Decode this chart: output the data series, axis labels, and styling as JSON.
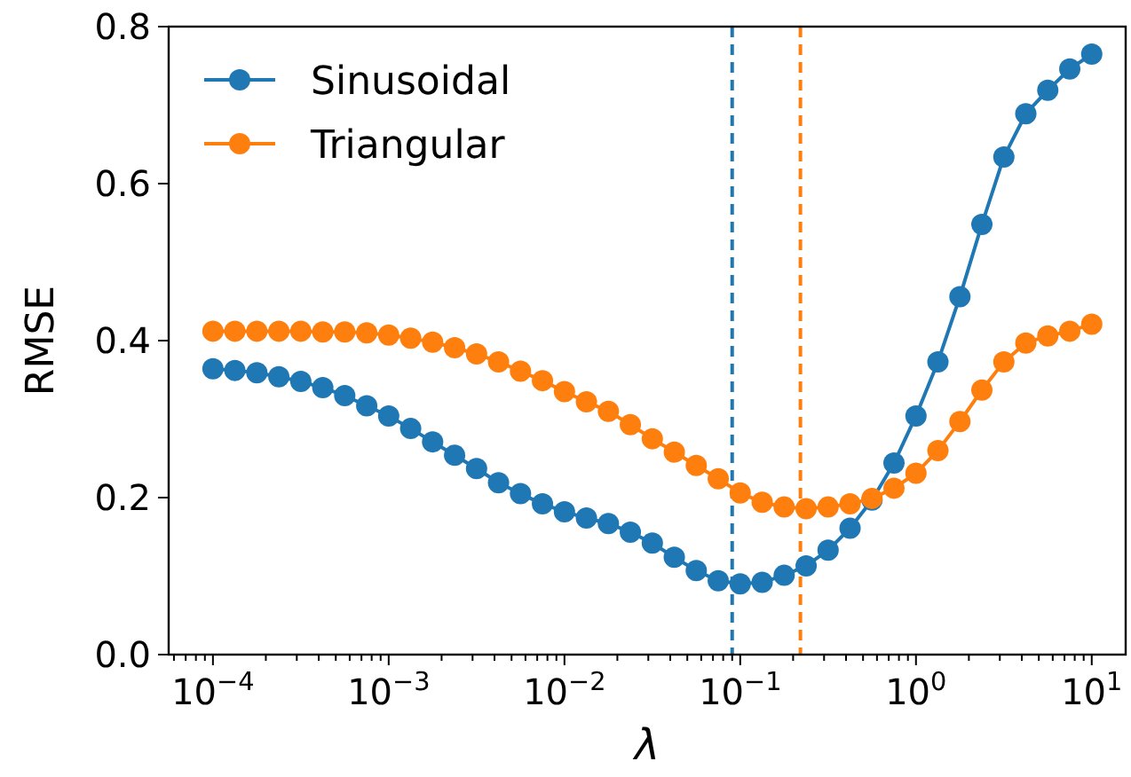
{
  "chart_data": {
    "type": "line",
    "xlabel": "λ",
    "ylabel": "RMSE",
    "log": "x",
    "marker": "circle",
    "line_style": "solid",
    "legend": "top left",
    "grid": false,
    "x": [
      0.0001,
      0.00013335,
      0.00017783,
      0.00023714,
      0.00031623,
      0.0004217,
      0.00056234,
      0.00074989,
      0.001,
      0.0013335,
      0.0017783,
      0.0023714,
      0.0031623,
      0.004217,
      0.0056234,
      0.0074989,
      0.01,
      0.013335,
      0.017783,
      0.023714,
      0.031623,
      0.04217,
      0.056234,
      0.074989,
      0.1,
      0.13335,
      0.17783,
      0.23714,
      0.31623,
      0.4217,
      0.56234,
      0.74989,
      1,
      1.3335,
      1.7783,
      2.3714,
      3.1623,
      4.217,
      5.6234,
      7.4989,
      10
    ],
    "xlim": [
      5.6e-05,
      15.6
    ],
    "xticks": [
      {
        "value": 0.0001,
        "label": "10$^{−4}$"
      },
      {
        "value": 0.001,
        "label": "10$^{−3}$"
      },
      {
        "value": 0.01,
        "label": "10$^{−2}$"
      },
      {
        "value": 0.1,
        "label": "10$^{−1}$"
      },
      {
        "value": 1,
        "label": "10$^{0}$"
      },
      {
        "value": 10,
        "label": "10$^{1}$"
      }
    ],
    "ylim": [
      0,
      0.8
    ],
    "yticks": [
      {
        "value": 0,
        "label": "0.0"
      },
      0.2,
      0.4,
      0.6,
      0.8
    ],
    "series": [
      {
        "name": "Sinusoidal",
        "color": "#1f77b4",
        "values": [
          0.364,
          0.362,
          0.359,
          0.354,
          0.348,
          0.34,
          0.33,
          0.317,
          0.304,
          0.288,
          0.271,
          0.254,
          0.237,
          0.219,
          0.205,
          0.192,
          0.182,
          0.174,
          0.167,
          0.156,
          0.142,
          0.124,
          0.107,
          0.094,
          0.09,
          0.092,
          0.101,
          0.113,
          0.133,
          0.161,
          0.197,
          0.244,
          0.304,
          0.373,
          0.456,
          0.548,
          0.634,
          0.689,
          0.719,
          0.746,
          0.765
        ]
      },
      {
        "name": "Triangular",
        "color": "#ff7f0e",
        "values": [
          0.412,
          0.412,
          0.412,
          0.412,
          0.412,
          0.411,
          0.411,
          0.41,
          0.407,
          0.403,
          0.398,
          0.391,
          0.383,
          0.373,
          0.361,
          0.349,
          0.335,
          0.322,
          0.31,
          0.293,
          0.275,
          0.258,
          0.241,
          0.224,
          0.206,
          0.194,
          0.188,
          0.186,
          0.188,
          0.192,
          0.199,
          0.212,
          0.231,
          0.26,
          0.297,
          0.337,
          0.373,
          0.397,
          0.406,
          0.412,
          0.421
        ]
      }
    ],
    "ref_lines": [
      {
        "axis": "x",
        "value": 0.09,
        "color": "#1f77b4",
        "line_style": "dashed"
      },
      {
        "axis": "x",
        "value": 0.22,
        "color": "#ff7f0e",
        "line_style": "dashed"
      }
    ]
  }
}
